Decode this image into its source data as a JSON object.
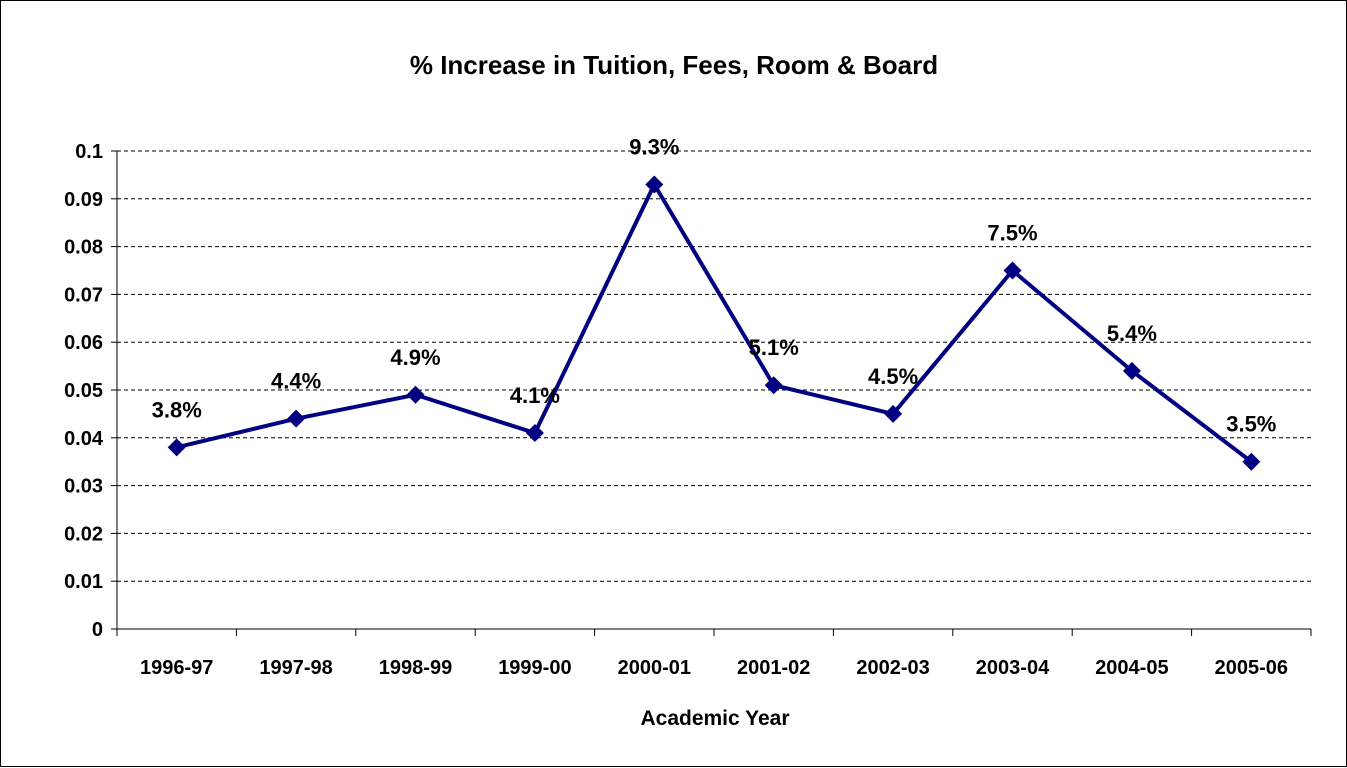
{
  "chart_data": {
    "type": "line",
    "title": "% Increase in Tuition, Fees, Room & Board",
    "xlabel": "Academic Year",
    "ylabel": "",
    "categories": [
      "1996-97",
      "1997-98",
      "1998-99",
      "1999-00",
      "2000-01",
      "2001-02",
      "2002-03",
      "2003-04",
      "2004-05",
      "2005-06"
    ],
    "series": [
      {
        "values": [
          0.038,
          0.044,
          0.049,
          0.041,
          0.093,
          0.051,
          0.045,
          0.075,
          0.054,
          0.035
        ],
        "data_labels": [
          "3.8%",
          "4.4%",
          "4.9%",
          "4.1%",
          "9.3%",
          "5.1%",
          "4.5%",
          "7.5%",
          "5.4%",
          "3.5%"
        ],
        "color": "#000080",
        "marker": "diamond"
      }
    ],
    "ylim": [
      0,
      0.1
    ],
    "y_ticks": [
      "0",
      "0.01",
      "0.02",
      "0.03",
      "0.04",
      "0.05",
      "0.06",
      "0.07",
      "0.08",
      "0.09",
      "0.1"
    ],
    "grid": "horizontal-dashed",
    "legend": "none"
  }
}
